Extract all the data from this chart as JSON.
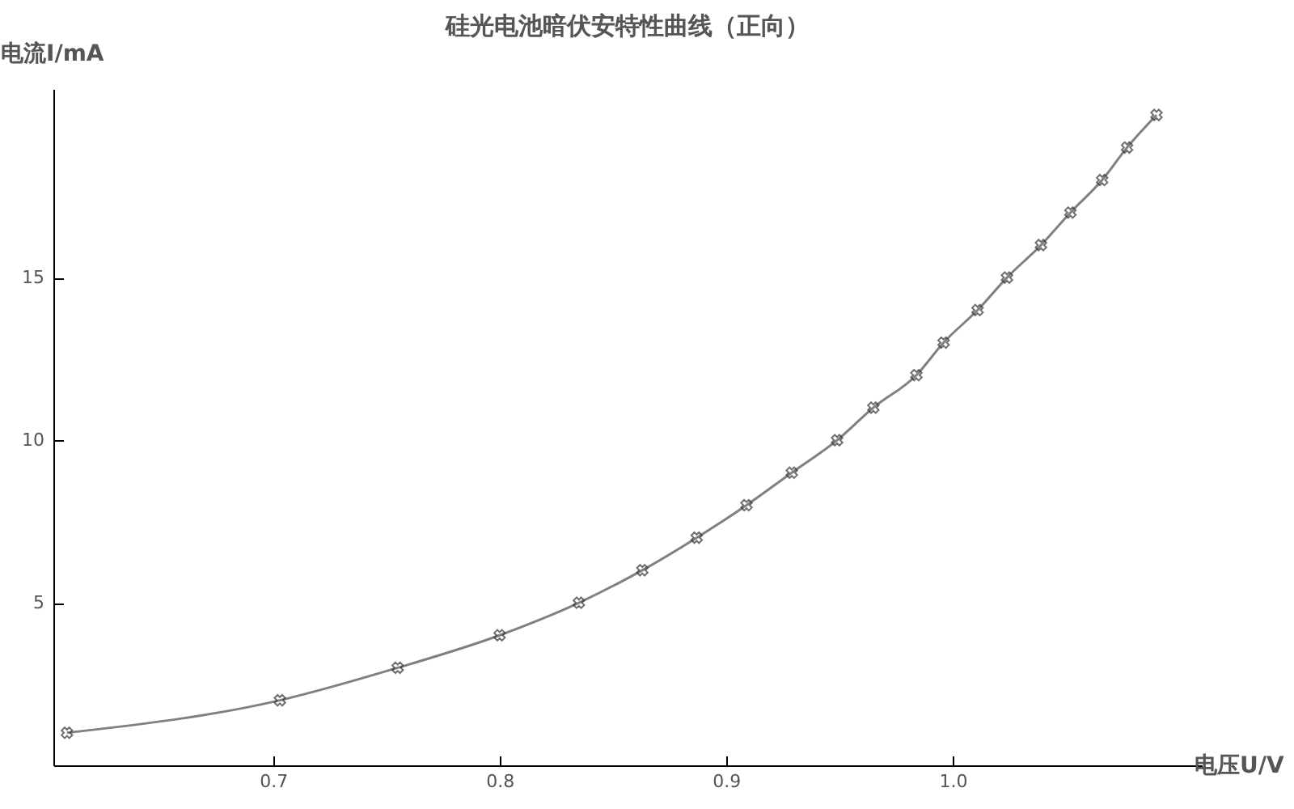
{
  "chart_data": {
    "type": "line",
    "title": "硅光电池暗伏安特性曲线（正向）",
    "xlabel": "电压U/V",
    "ylabel": "电流I/mA",
    "x": [
      0.609,
      0.703,
      0.755,
      0.8,
      0.835,
      0.863,
      0.887,
      0.909,
      0.929,
      0.949,
      0.965,
      0.984,
      0.996,
      1.011,
      1.024,
      1.039,
      1.052,
      1.066,
      1.077,
      1.09
    ],
    "series": [
      {
        "color": "#808080",
        "values": [
          1,
          2,
          3,
          4,
          5,
          6,
          7,
          8,
          9,
          10,
          11,
          12,
          13,
          14,
          15,
          16,
          17,
          18,
          19,
          20
        ]
      }
    ],
    "marker": "cross",
    "grid": false,
    "xlim": [
      0.603,
      1.11
    ],
    "ylim": [
      0,
      20.8
    ],
    "xticks": [
      0.7,
      0.8,
      0.9,
      {
        "value": 1,
        "label": "1.0"
      }
    ],
    "yticks": [
      5,
      10,
      15
    ]
  }
}
